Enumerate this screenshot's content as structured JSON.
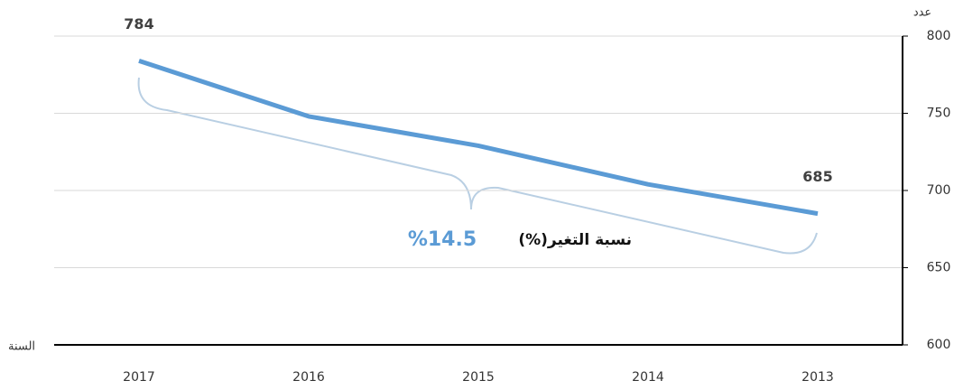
{
  "chart_data": {
    "type": "line",
    "categories": [
      "2017",
      "2016",
      "2015",
      "2014",
      "2013"
    ],
    "series": [
      {
        "color": "#5b9bd5",
        "values": [
          784,
          748,
          729,
          704,
          685
        ],
        "value_labels": [
          "784",
          null,
          null,
          null,
          "685"
        ]
      }
    ],
    "ylim": [
      600,
      800
    ],
    "yticks": [
      600,
      650,
      700,
      750,
      800
    ],
    "grid": true,
    "y_axis_label": "عدد",
    "x_axis_label": "السنة",
    "annotation": {
      "label": "نسبة التغير(%)",
      "value": "%14.5"
    }
  }
}
